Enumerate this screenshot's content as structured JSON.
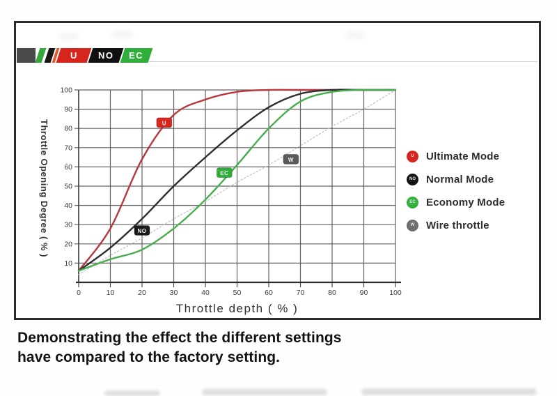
{
  "logo": {
    "bar_color": "#4a4a4a",
    "stripes": [
      "#37a93c",
      "#161616",
      "#e05a2b"
    ],
    "segments": [
      {
        "text": "U",
        "bg": "#d6251d"
      },
      {
        "text": "NO",
        "bg": "#101010"
      },
      {
        "text": "EC",
        "bg": "#2fae3a"
      }
    ]
  },
  "chart_data": {
    "type": "line",
    "title": "",
    "xlabel": "Throttle depth ( % )",
    "ylabel": "Throttle Opening Degree ( % )",
    "xlim": [
      0,
      100
    ],
    "ylim": [
      0,
      100
    ],
    "grid": true,
    "legend_position": "right",
    "xticks": [
      0,
      10,
      20,
      30,
      40,
      50,
      60,
      70,
      80,
      90,
      100
    ],
    "yticks": [
      10,
      20,
      30,
      40,
      50,
      60,
      70,
      80,
      90,
      100
    ],
    "x": [
      0,
      10,
      20,
      30,
      40,
      50,
      60,
      70,
      80,
      90,
      100
    ],
    "series": [
      {
        "name": "Wire throttle",
        "abbr": "W",
        "color": "#c2c2c2",
        "style": "dotted",
        "values": [
          4,
          14,
          23,
          33,
          42,
          52,
          61,
          71,
          81,
          90,
          100
        ]
      },
      {
        "name": "Ultimate Mode",
        "abbr": "U",
        "color": "#b6373c",
        "style": "solid",
        "values": [
          6,
          28,
          64,
          87,
          95,
          99,
          100,
          100,
          100,
          100,
          100
        ]
      },
      {
        "name": "Normal Mode",
        "abbr": "NO",
        "color": "#2d2d2d",
        "style": "solid",
        "values": [
          6,
          18,
          33,
          50,
          65,
          79,
          91,
          98,
          100,
          100,
          100
        ]
      },
      {
        "name": "Economy Mode",
        "abbr": "EC",
        "color": "#46ae4d",
        "style": "solid",
        "values": [
          6,
          12,
          17,
          28,
          43,
          61,
          80,
          94,
          99,
          100,
          100
        ]
      }
    ],
    "markers": [
      {
        "abbr": "U",
        "x": 27,
        "y": 83,
        "bg": "#d6251d"
      },
      {
        "abbr": "NO",
        "x": 20,
        "y": 27,
        "bg": "#1a1a1a"
      },
      {
        "abbr": "EC",
        "x": 46,
        "y": 57,
        "bg": "#2fae3a"
      },
      {
        "abbr": "W",
        "x": 67,
        "y": 64,
        "bg": "#5a5a5a"
      }
    ]
  },
  "legend": {
    "items": [
      {
        "abbr": "U",
        "label": "Ultimate Mode",
        "color": "#d6251d"
      },
      {
        "abbr": "NO",
        "label": "Normal Mode",
        "color": "#141414"
      },
      {
        "abbr": "EC",
        "label": "Economy Mode",
        "color": "#33b13d"
      },
      {
        "abbr": "W",
        "label": "Wire throttle",
        "color": "#6e6e6e"
      }
    ]
  },
  "caption": {
    "line1": "Demonstrating the effect the different settings",
    "line2": "have compared to the factory setting."
  }
}
